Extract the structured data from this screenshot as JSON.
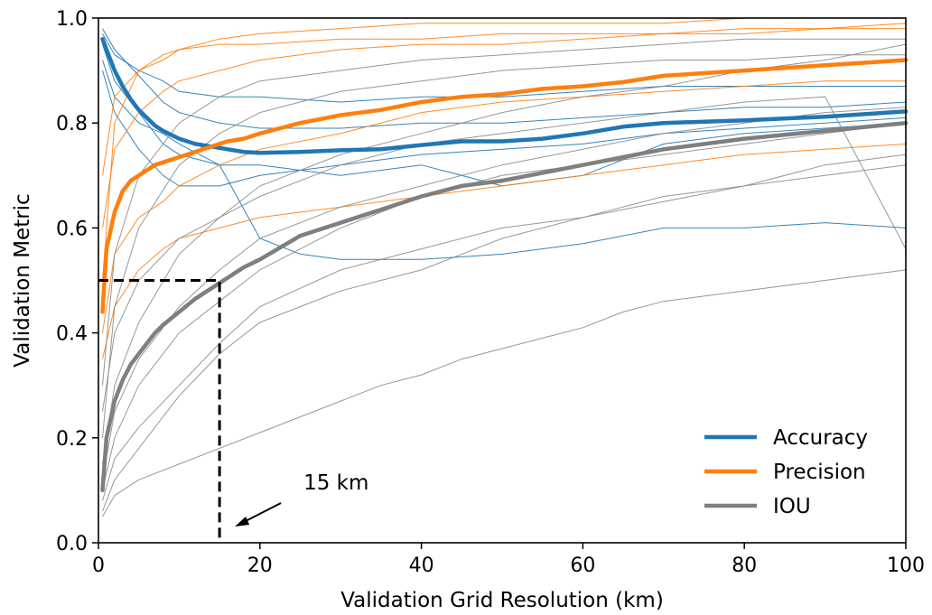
{
  "chart_data": {
    "type": "line",
    "title": "",
    "xlabel": "Validation Grid Resolution (km)",
    "ylabel": "Validation Metric",
    "xlim": [
      0,
      100
    ],
    "ylim": [
      0,
      1.0
    ],
    "xticks": [
      0,
      20,
      40,
      60,
      80,
      100
    ],
    "xtick_labels": [
      "0",
      "20",
      "40",
      "60",
      "80",
      "100"
    ],
    "yticks": [
      0.0,
      0.2,
      0.4,
      0.6,
      0.8,
      1.0
    ],
    "ytick_labels": [
      "0.0",
      "0.2",
      "0.4",
      "0.6",
      "0.8",
      "1.0"
    ],
    "grid": false,
    "legend_position": "bottom-right",
    "colors": {
      "accuracy": "#1f77b4",
      "precision": "#ff7f0e",
      "iou": "#7f7f7f",
      "thin_iou": "#8c8c8c",
      "annotation": "#000000"
    },
    "series": [
      {
        "name": "Accuracy",
        "color": "#1f77b4",
        "x": [
          0.5,
          1,
          2,
          3,
          4,
          5,
          6,
          7,
          8,
          10,
          12,
          14,
          16,
          18,
          20,
          25,
          30,
          35,
          40,
          45,
          50,
          55,
          60,
          65,
          70,
          80,
          90,
          100
        ],
        "y": [
          0.96,
          0.94,
          0.9,
          0.87,
          0.845,
          0.825,
          0.81,
          0.795,
          0.785,
          0.77,
          0.76,
          0.755,
          0.75,
          0.745,
          0.743,
          0.745,
          0.748,
          0.75,
          0.758,
          0.765,
          0.765,
          0.77,
          0.78,
          0.793,
          0.8,
          0.805,
          0.812,
          0.822
        ]
      },
      {
        "name": "Precision",
        "color": "#ff7f0e",
        "x": [
          0.5,
          1,
          2,
          3,
          4,
          5,
          6,
          7,
          8,
          10,
          12,
          14,
          16,
          18,
          20,
          25,
          30,
          35,
          40,
          45,
          50,
          55,
          60,
          65,
          70,
          80,
          90,
          100
        ],
        "y": [
          0.44,
          0.56,
          0.63,
          0.67,
          0.69,
          0.7,
          0.71,
          0.72,
          0.725,
          0.735,
          0.745,
          0.755,
          0.765,
          0.77,
          0.78,
          0.8,
          0.815,
          0.825,
          0.84,
          0.85,
          0.855,
          0.865,
          0.87,
          0.878,
          0.89,
          0.9,
          0.91,
          0.92
        ]
      },
      {
        "name": "IOU",
        "color": "#7f7f7f",
        "x": [
          0.5,
          1,
          2,
          3,
          4,
          5,
          6,
          7,
          8,
          10,
          12,
          14,
          16,
          18,
          20,
          25,
          30,
          35,
          40,
          45,
          50,
          55,
          60,
          65,
          70,
          80,
          90,
          100
        ],
        "y": [
          0.1,
          0.2,
          0.27,
          0.31,
          0.34,
          0.36,
          0.38,
          0.4,
          0.415,
          0.44,
          0.465,
          0.485,
          0.505,
          0.525,
          0.54,
          0.585,
          0.61,
          0.635,
          0.66,
          0.68,
          0.69,
          0.705,
          0.72,
          0.735,
          0.75,
          0.77,
          0.785,
          0.8
        ]
      }
    ],
    "thin_series": [
      {
        "color": "#1f77b4",
        "x": [
          0.5,
          2,
          5,
          8,
          10,
          15,
          20,
          30,
          40,
          50,
          60,
          70,
          80,
          90,
          100
        ],
        "y": [
          0.97,
          0.93,
          0.9,
          0.88,
          0.86,
          0.85,
          0.85,
          0.84,
          0.85,
          0.85,
          0.86,
          0.87,
          0.87,
          0.87,
          0.87
        ]
      },
      {
        "color": "#1f77b4",
        "x": [
          0.5,
          2,
          5,
          8,
          10,
          15,
          20,
          25,
          30,
          40,
          50,
          60,
          70,
          80,
          90,
          100
        ],
        "y": [
          0.92,
          0.85,
          0.8,
          0.78,
          0.76,
          0.72,
          0.58,
          0.55,
          0.54,
          0.54,
          0.55,
          0.57,
          0.6,
          0.6,
          0.61,
          0.6
        ]
      },
      {
        "color": "#1f77b4",
        "x": [
          0.5,
          2,
          5,
          8,
          10,
          15,
          20,
          30,
          40,
          50,
          60,
          70,
          80,
          90,
          100
        ],
        "y": [
          0.95,
          0.88,
          0.82,
          0.76,
          0.74,
          0.72,
          0.72,
          0.7,
          0.72,
          0.68,
          0.7,
          0.76,
          0.78,
          0.79,
          0.8
        ]
      },
      {
        "color": "#1f77b4",
        "x": [
          0.5,
          2,
          5,
          8,
          10,
          15,
          20,
          30,
          40,
          50,
          60,
          70,
          80,
          90,
          100
        ],
        "y": [
          0.98,
          0.94,
          0.89,
          0.84,
          0.82,
          0.8,
          0.79,
          0.79,
          0.8,
          0.8,
          0.81,
          0.82,
          0.83,
          0.83,
          0.84
        ]
      },
      {
        "color": "#1f77b4",
        "x": [
          0.5,
          2,
          5,
          8,
          10,
          15,
          20,
          30,
          40,
          50,
          60,
          70,
          80,
          90,
          100
        ],
        "y": [
          0.9,
          0.82,
          0.75,
          0.7,
          0.68,
          0.68,
          0.7,
          0.72,
          0.74,
          0.75,
          0.76,
          0.78,
          0.79,
          0.8,
          0.81
        ]
      },
      {
        "color": "#ff7f0e",
        "x": [
          0.5,
          2,
          5,
          8,
          10,
          15,
          20,
          30,
          40,
          50,
          60,
          70,
          80,
          90,
          100
        ],
        "y": [
          0.5,
          0.8,
          0.9,
          0.93,
          0.94,
          0.95,
          0.95,
          0.96,
          0.96,
          0.97,
          0.97,
          0.97,
          0.98,
          0.98,
          0.98
        ]
      },
      {
        "color": "#ff7f0e",
        "x": [
          0.5,
          2,
          5,
          8,
          10,
          15,
          20,
          30,
          40,
          50,
          60,
          70,
          80,
          90,
          100
        ],
        "y": [
          0.4,
          0.55,
          0.62,
          0.65,
          0.68,
          0.72,
          0.75,
          0.78,
          0.82,
          0.84,
          0.85,
          0.86,
          0.87,
          0.88,
          0.88
        ]
      },
      {
        "color": "#ff7f0e",
        "x": [
          0.5,
          2,
          5,
          8,
          10,
          15,
          20,
          30,
          40,
          50,
          60,
          70,
          80,
          90,
          100
        ],
        "y": [
          0.6,
          0.75,
          0.82,
          0.86,
          0.88,
          0.9,
          0.92,
          0.94,
          0.95,
          0.95,
          0.96,
          0.97,
          0.97,
          0.98,
          0.99
        ]
      },
      {
        "color": "#ff7f0e",
        "x": [
          0.5,
          2,
          5,
          8,
          10,
          15,
          20,
          30,
          40,
          50,
          60,
          70,
          80,
          90,
          100
        ],
        "y": [
          0.35,
          0.45,
          0.52,
          0.56,
          0.58,
          0.6,
          0.62,
          0.64,
          0.66,
          0.68,
          0.7,
          0.72,
          0.74,
          0.75,
          0.76
        ]
      },
      {
        "color": "#ff7f0e",
        "x": [
          0.5,
          2,
          5,
          8,
          10,
          15,
          20,
          30,
          40,
          50,
          60,
          70,
          80,
          90,
          100
        ],
        "y": [
          0.7,
          0.85,
          0.9,
          0.92,
          0.94,
          0.96,
          0.97,
          0.98,
          0.99,
          0.99,
          0.99,
          0.99,
          1.0,
          1.0,
          1.0
        ]
      },
      {
        "color": "#8c8c8c",
        "x": [
          0.5,
          2,
          5,
          10,
          15,
          20,
          25,
          30,
          35,
          40,
          45,
          50,
          55,
          60,
          65,
          70,
          80,
          90,
          100
        ],
        "y": [
          0.05,
          0.09,
          0.12,
          0.15,
          0.18,
          0.21,
          0.24,
          0.27,
          0.3,
          0.32,
          0.35,
          0.37,
          0.39,
          0.41,
          0.44,
          0.46,
          0.48,
          0.5,
          0.52
        ]
      },
      {
        "color": "#8c8c8c",
        "x": [
          0.5,
          2,
          5,
          10,
          15,
          20,
          30,
          40,
          50,
          60,
          70,
          80,
          90,
          100
        ],
        "y": [
          0.08,
          0.16,
          0.22,
          0.3,
          0.38,
          0.45,
          0.52,
          0.56,
          0.6,
          0.62,
          0.65,
          0.68,
          0.7,
          0.72
        ]
      },
      {
        "color": "#8c8c8c",
        "x": [
          0.5,
          2,
          5,
          10,
          15,
          20,
          30,
          40,
          50,
          60,
          70,
          80,
          90,
          100
        ],
        "y": [
          0.12,
          0.25,
          0.35,
          0.45,
          0.52,
          0.58,
          0.64,
          0.68,
          0.72,
          0.75,
          0.78,
          0.8,
          0.82,
          0.83
        ]
      },
      {
        "color": "#8c8c8c",
        "x": [
          0.5,
          2,
          5,
          10,
          15,
          20,
          30,
          40,
          50,
          60,
          70,
          80,
          90,
          100
        ],
        "y": [
          0.15,
          0.3,
          0.42,
          0.55,
          0.62,
          0.68,
          0.74,
          0.78,
          0.82,
          0.85,
          0.87,
          0.9,
          0.92,
          0.95
        ]
      },
      {
        "color": "#8c8c8c",
        "x": [
          0.5,
          2,
          5,
          10,
          15,
          20,
          30,
          40,
          50,
          60,
          70,
          80,
          90,
          100
        ],
        "y": [
          0.1,
          0.2,
          0.3,
          0.4,
          0.46,
          0.52,
          0.6,
          0.66,
          0.7,
          0.72,
          0.74,
          0.76,
          0.78,
          0.8
        ]
      },
      {
        "color": "#8c8c8c",
        "x": [
          0.5,
          2,
          5,
          10,
          15,
          20,
          30,
          40,
          50,
          60,
          70,
          80,
          90,
          100
        ],
        "y": [
          0.2,
          0.45,
          0.6,
          0.72,
          0.78,
          0.82,
          0.86,
          0.88,
          0.9,
          0.91,
          0.92,
          0.92,
          0.93,
          0.93
        ]
      },
      {
        "color": "#8c8c8c",
        "x": [
          0.5,
          2,
          5,
          10,
          15,
          20,
          30,
          40,
          50,
          60,
          70,
          80,
          90,
          100
        ],
        "y": [
          0.06,
          0.12,
          0.18,
          0.28,
          0.36,
          0.42,
          0.48,
          0.52,
          0.58,
          0.62,
          0.66,
          0.68,
          0.72,
          0.74
        ]
      },
      {
        "color": "#8c8c8c",
        "x": [
          0.5,
          2,
          5,
          10,
          15,
          20,
          30,
          40,
          50,
          60,
          70,
          80,
          90,
          100
        ],
        "y": [
          0.3,
          0.55,
          0.7,
          0.8,
          0.85,
          0.88,
          0.9,
          0.92,
          0.93,
          0.94,
          0.95,
          0.96,
          0.96,
          0.96
        ]
      },
      {
        "color": "#8c8c8c",
        "x": [
          0.5,
          2,
          5,
          10,
          15,
          20,
          30,
          40,
          50,
          60,
          70,
          80,
          90,
          100
        ],
        "y": [
          0.25,
          0.4,
          0.5,
          0.58,
          0.62,
          0.66,
          0.72,
          0.76,
          0.78,
          0.8,
          0.82,
          0.84,
          0.85,
          0.56
        ]
      }
    ],
    "annotation": {
      "text": "15 km",
      "x": 15,
      "y": 0.5
    }
  }
}
